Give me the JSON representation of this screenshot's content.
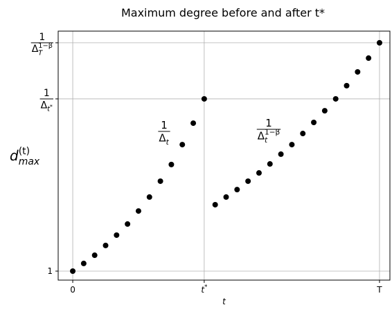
{
  "chart_data": {
    "type": "scatter",
    "title": "Maximum degree before and after t*",
    "xlabel": "t",
    "ylabel": [
      {
        "text": "d",
        "italic": true
      },
      {
        "text": "(t)",
        "pos": "sup"
      },
      {
        "text": "max",
        "pos": "sub",
        "italic": true,
        "stack": true
      }
    ],
    "x": [
      0,
      1,
      2,
      3,
      4,
      5,
      6,
      7,
      8,
      9,
      10,
      11,
      12,
      13,
      14,
      15,
      16,
      17,
      18,
      19,
      20,
      21,
      22,
      23,
      24,
      25,
      26,
      27,
      28
    ],
    "values": [
      1,
      1.4,
      1.83,
      2.34,
      2.88,
      3.46,
      4.14,
      4.87,
      5.7,
      6.57,
      7.61,
      8.73,
      10,
      4.47,
      4.87,
      5.26,
      5.7,
      6.13,
      6.6,
      7.11,
      7.61,
      8.19,
      8.77,
      9.38,
      10,
      10.69,
      11.41,
      12.13,
      12.93
    ],
    "color": "#000000",
    "xlim": [
      -1.33,
      28.95
    ],
    "ylim": [
      0.53,
      13.54
    ],
    "xticks": [
      0,
      {
        "value": 12,
        "label": [
          {
            "text": "t",
            "italic": true
          },
          {
            "text": "*",
            "pos": "sup"
          }
        ]
      },
      {
        "value": 28,
        "label": "T"
      }
    ],
    "yticks": [
      1,
      {
        "value": 10,
        "label": {
          "numerator": "1",
          "denominator": [
            {
              "text": "Δ"
            },
            {
              "text": "t",
              "pos": "sub",
              "italic": true
            },
            {
              "text": "*",
              "pos": "subsup"
            }
          ]
        }
      },
      {
        "value": 12.93,
        "label": {
          "numerator": "1",
          "denominator": [
            {
              "text": "Δ"
            },
            {
              "text": "T",
              "pos": "sub",
              "italic": true
            },
            {
              "text": "1−β",
              "pos": "sup",
              "stack": true
            }
          ]
        }
      }
    ],
    "grid": true,
    "annotations": [
      {
        "numerator": "1",
        "denominator": [
          {
            "text": "Δ"
          },
          {
            "text": "t",
            "pos": "sub",
            "italic": true
          }
        ]
      },
      {
        "numerator": "1",
        "denominator": [
          {
            "text": "Δ"
          },
          {
            "text": "t",
            "pos": "sub",
            "italic": true
          },
          {
            "text": "1−β",
            "pos": "sup",
            "stack": true
          }
        ]
      }
    ]
  }
}
